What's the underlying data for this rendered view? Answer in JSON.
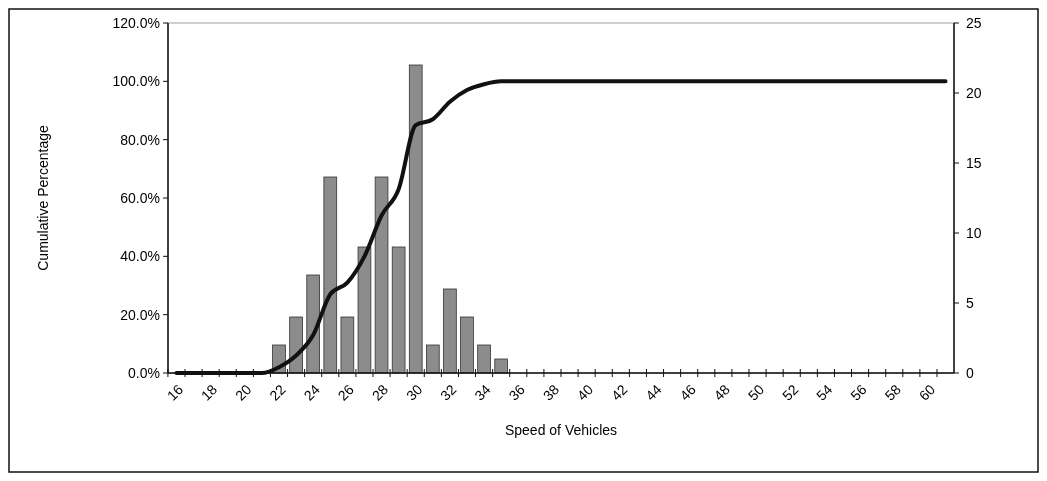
{
  "chart_data": {
    "type": "bar",
    "xlabel": "Speed of Vehicles",
    "ylabel": "Cumulative Percentage",
    "categories": [
      "16",
      null,
      "18",
      null,
      "20",
      null,
      "22",
      null,
      "24",
      null,
      "26",
      null,
      "28",
      null,
      "30",
      null,
      "32",
      null,
      "34",
      null,
      "36",
      null,
      "38",
      null,
      "40",
      null,
      "42",
      null,
      "44",
      null,
      "46",
      null,
      "48",
      null,
      "50",
      null,
      "52",
      null,
      "54",
      null,
      "56",
      null,
      "58",
      null,
      "60",
      null
    ],
    "series": [
      {
        "axis": "y2",
        "color": "#8c8c8c",
        "values": [
          0,
          0,
          0,
          0,
          0,
          0,
          2,
          4,
          7,
          14,
          4,
          9,
          14,
          9,
          22,
          2,
          6,
          4,
          2,
          1,
          0,
          0,
          0,
          0,
          0,
          0,
          0,
          0,
          0,
          0,
          0,
          0,
          0,
          0,
          0,
          0,
          0,
          0,
          0,
          0,
          0,
          0,
          0,
          0,
          0,
          0
        ]
      },
      {
        "type": "line",
        "axis": "y",
        "color": "#111111",
        "values": [
          0,
          0,
          0,
          0,
          0,
          0,
          2,
          6,
          13,
          27,
          31,
          40,
          54,
          63,
          85,
          87,
          93,
          97,
          99,
          100,
          100,
          100,
          100,
          100,
          100,
          100,
          100,
          100,
          100,
          100,
          100,
          100,
          100,
          100,
          100,
          100,
          100,
          100,
          100,
          100,
          100,
          100,
          100,
          100,
          100,
          100
        ]
      }
    ],
    "ylim": [
      0,
      120
    ],
    "yticks": [
      {
        "value": 0,
        "label": "0.0%"
      },
      {
        "value": 20,
        "label": "20.0%"
      },
      {
        "value": 40,
        "label": "40.0%"
      },
      {
        "value": 60,
        "label": "60.0%"
      },
      {
        "value": 80,
        "label": "80.0%"
      },
      {
        "value": 100,
        "label": "100.0%"
      },
      {
        "value": 120,
        "label": "120.0%"
      }
    ],
    "y2lim": [
      0,
      25
    ],
    "y2ticks": [
      0,
      5,
      10,
      15,
      20,
      25
    ],
    "grid": false
  }
}
